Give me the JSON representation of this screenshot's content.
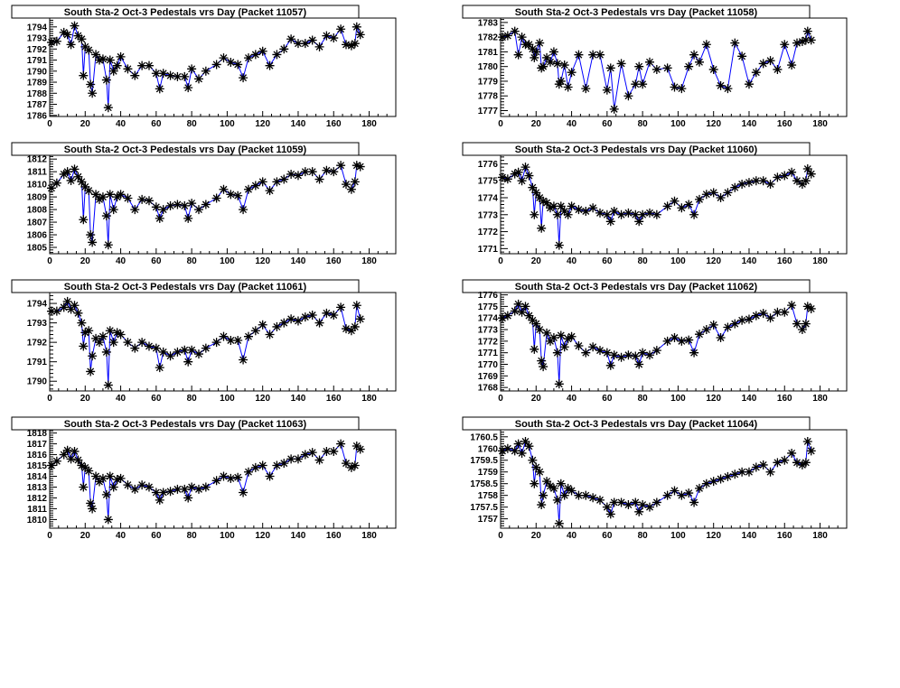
{
  "chart_data": [
    {
      "type": "line",
      "title": "South Sta-2 Oct-3 Pedestals vrs Day (Packet 11057)",
      "xlabel": "",
      "ylabel": "",
      "xlim": [
        0,
        195
      ],
      "ylim": [
        1785.9,
        1794.8
      ],
      "xticks": [
        0,
        20,
        40,
        60,
        80,
        100,
        120,
        140,
        160,
        180
      ],
      "yticks": [
        1786,
        1787,
        1788,
        1789,
        1790,
        1791,
        1792,
        1793,
        1794
      ],
      "x": [
        1,
        4,
        8,
        10,
        12,
        14,
        16,
        18,
        19,
        20,
        22,
        23,
        24,
        26,
        28,
        30,
        32,
        33,
        34,
        36,
        38,
        40,
        44,
        48,
        52,
        56,
        60,
        62,
        64,
        68,
        72,
        76,
        78,
        80,
        84,
        88,
        94,
        98,
        102,
        106,
        109,
        112,
        116,
        120,
        124,
        128,
        132,
        136,
        140,
        144,
        148,
        152,
        156,
        160,
        164,
        167,
        170,
        172,
        173,
        175
      ],
      "y": [
        1792.6,
        1792.7,
        1793.5,
        1793.3,
        1792.4,
        1794.1,
        1793.2,
        1792.9,
        1789.6,
        1792.2,
        1791.9,
        1788.8,
        1788.0,
        1791.5,
        1791.0,
        1791.1,
        1789.2,
        1786.7,
        1791.0,
        1790.0,
        1790.5,
        1791.3,
        1790.2,
        1789.6,
        1790.5,
        1790.5,
        1789.8,
        1788.4,
        1789.8,
        1789.6,
        1789.5,
        1789.5,
        1788.5,
        1790.2,
        1789.3,
        1790.0,
        1790.6,
        1791.2,
        1790.8,
        1790.6,
        1789.4,
        1791.2,
        1791.5,
        1791.8,
        1790.5,
        1791.5,
        1792.0,
        1792.9,
        1792.5,
        1792.5,
        1792.8,
        1792.2,
        1793.2,
        1793.0,
        1793.8,
        1792.4,
        1792.3,
        1792.5,
        1794.0,
        1793.3
      ]
    },
    {
      "type": "line",
      "title": "South Sta-2 Oct-3 Pedestals vrs Day (Packet 11058)",
      "xlabel": "",
      "ylabel": "",
      "xlim": [
        0,
        195
      ],
      "ylim": [
        1776.6,
        1783.3
      ],
      "xticks": [
        0,
        20,
        40,
        60,
        80,
        100,
        120,
        140,
        160,
        180
      ],
      "yticks": [
        1777,
        1778,
        1779,
        1780,
        1781,
        1782,
        1783
      ],
      "x": [
        1,
        4,
        8,
        10,
        12,
        14,
        16,
        18,
        19,
        20,
        22,
        23,
        24,
        26,
        28,
        30,
        32,
        33,
        34,
        36,
        38,
        40,
        44,
        48,
        52,
        56,
        60,
        62,
        64,
        68,
        72,
        76,
        78,
        80,
        84,
        88,
        94,
        98,
        102,
        106,
        109,
        112,
        116,
        120,
        124,
        128,
        132,
        136,
        140,
        144,
        148,
        152,
        156,
        160,
        164,
        167,
        170,
        172,
        173,
        175
      ],
      "y": [
        1782.0,
        1782.1,
        1782.4,
        1780.8,
        1782.0,
        1781.5,
        1781.5,
        1781.2,
        1780.6,
        1781.0,
        1781.6,
        1779.9,
        1780.0,
        1780.6,
        1780.3,
        1781.0,
        1780.2,
        1778.8,
        1779.0,
        1780.1,
        1778.6,
        1779.6,
        1780.8,
        1778.5,
        1780.8,
        1780.8,
        1778.4,
        1779.9,
        1777.1,
        1780.2,
        1778.0,
        1778.8,
        1780.0,
        1778.8,
        1780.3,
        1779.8,
        1779.9,
        1778.6,
        1778.5,
        1780.0,
        1780.8,
        1780.3,
        1781.5,
        1779.8,
        1778.7,
        1778.5,
        1781.6,
        1780.7,
        1778.8,
        1779.6,
        1780.2,
        1780.4,
        1779.8,
        1781.5,
        1780.1,
        1781.6,
        1781.7,
        1781.8,
        1782.4,
        1781.8
      ]
    },
    {
      "type": "line",
      "title": "South Sta-2 Oct-3 Pedestals vrs Day (Packet 11059)",
      "xlabel": "",
      "ylabel": "",
      "xlim": [
        0,
        195
      ],
      "ylim": [
        1804.5,
        1812.3
      ],
      "xticks": [
        0,
        20,
        40,
        60,
        80,
        100,
        120,
        140,
        160,
        180
      ],
      "yticks": [
        1805,
        1806,
        1807,
        1808,
        1809,
        1810,
        1811,
        1812
      ],
      "x": [
        1,
        4,
        8,
        10,
        12,
        14,
        16,
        18,
        19,
        20,
        22,
        23,
        24,
        26,
        28,
        30,
        32,
        33,
        34,
        36,
        38,
        40,
        44,
        48,
        52,
        56,
        60,
        62,
        64,
        68,
        72,
        76,
        78,
        80,
        84,
        88,
        94,
        98,
        102,
        106,
        109,
        112,
        116,
        120,
        124,
        128,
        132,
        136,
        140,
        144,
        148,
        152,
        156,
        160,
        164,
        167,
        170,
        172,
        173,
        175
      ],
      "y": [
        1809.7,
        1810.1,
        1810.8,
        1811.0,
        1810.3,
        1811.2,
        1810.6,
        1810.2,
        1807.2,
        1809.8,
        1809.5,
        1806.0,
        1805.4,
        1809.2,
        1808.8,
        1809.0,
        1807.5,
        1805.2,
        1809.2,
        1808.0,
        1809.0,
        1809.2,
        1808.9,
        1808.0,
        1808.8,
        1808.7,
        1808.2,
        1807.3,
        1808.0,
        1808.3,
        1808.4,
        1808.3,
        1807.3,
        1808.5,
        1808.0,
        1808.4,
        1808.9,
        1809.6,
        1809.2,
        1809.1,
        1808.0,
        1809.6,
        1809.9,
        1810.2,
        1809.5,
        1810.2,
        1810.4,
        1810.8,
        1810.7,
        1811.0,
        1811.0,
        1810.4,
        1811.1,
        1811.0,
        1811.5,
        1810.0,
        1809.6,
        1810.2,
        1811.5,
        1811.4
      ]
    },
    {
      "type": "line",
      "title": "South Sta-2 Oct-3 Pedestals vrs Day (Packet 11060)",
      "xlabel": "",
      "ylabel": "",
      "xlim": [
        0,
        195
      ],
      "ylim": [
        1770.7,
        1776.5
      ],
      "xticks": [
        0,
        20,
        40,
        60,
        80,
        100,
        120,
        140,
        160,
        180
      ],
      "yticks": [
        1771,
        1772,
        1773,
        1774,
        1775,
        1776
      ],
      "x": [
        1,
        4,
        8,
        10,
        12,
        14,
        16,
        18,
        19,
        20,
        22,
        23,
        24,
        26,
        28,
        30,
        32,
        33,
        34,
        36,
        38,
        40,
        44,
        48,
        52,
        56,
        60,
        62,
        64,
        68,
        72,
        76,
        78,
        80,
        84,
        88,
        94,
        98,
        102,
        106,
        109,
        112,
        116,
        120,
        124,
        128,
        132,
        136,
        140,
        144,
        148,
        152,
        156,
        160,
        164,
        167,
        170,
        172,
        173,
        175
      ],
      "y": [
        1775.2,
        1775.1,
        1775.4,
        1775.5,
        1775.0,
        1775.8,
        1775.3,
        1774.6,
        1773.0,
        1774.3,
        1774.0,
        1772.2,
        1773.8,
        1773.7,
        1773.4,
        1773.5,
        1773.0,
        1771.2,
        1773.5,
        1773.2,
        1773.0,
        1773.5,
        1773.3,
        1773.2,
        1773.4,
        1773.1,
        1773.0,
        1772.6,
        1773.2,
        1773.0,
        1773.1,
        1773.0,
        1772.6,
        1773.0,
        1773.1,
        1773.0,
        1773.5,
        1773.8,
        1773.4,
        1773.6,
        1773.0,
        1773.9,
        1774.2,
        1774.3,
        1774.0,
        1774.3,
        1774.6,
        1774.8,
        1774.9,
        1775.0,
        1775.0,
        1774.8,
        1775.2,
        1775.3,
        1775.5,
        1775.0,
        1774.8,
        1775.0,
        1775.7,
        1775.4
      ]
    },
    {
      "type": "line",
      "title": "South Sta-2 Oct-3 Pedestals vrs Day (Packet 11061)",
      "xlabel": "",
      "ylabel": "",
      "xlim": [
        0,
        195
      ],
      "ylim": [
        1789.5,
        1794.56
      ],
      "xticks": [
        0,
        20,
        40,
        60,
        80,
        100,
        120,
        140,
        160,
        180
      ],
      "yticks": [
        1790,
        1791,
        1792,
        1793,
        1794
      ],
      "x": [
        1,
        4,
        8,
        10,
        12,
        14,
        16,
        18,
        19,
        20,
        22,
        23,
        24,
        26,
        28,
        30,
        32,
        33,
        34,
        36,
        38,
        40,
        44,
        48,
        52,
        56,
        60,
        62,
        64,
        68,
        72,
        76,
        78,
        80,
        84,
        88,
        94,
        98,
        102,
        106,
        109,
        112,
        116,
        120,
        124,
        128,
        132,
        136,
        140,
        144,
        148,
        152,
        156,
        160,
        164,
        167,
        170,
        172,
        173,
        175
      ],
      "y": [
        1793.6,
        1793.6,
        1793.8,
        1794.1,
        1793.7,
        1793.9,
        1793.5,
        1793.0,
        1791.8,
        1792.5,
        1792.6,
        1790.5,
        1791.3,
        1792.2,
        1792.0,
        1792.3,
        1791.5,
        1789.8,
        1792.6,
        1792.0,
        1792.5,
        1792.4,
        1792.0,
        1791.7,
        1792.0,
        1791.8,
        1791.7,
        1790.7,
        1791.5,
        1791.3,
        1791.5,
        1791.6,
        1791.0,
        1791.6,
        1791.4,
        1791.7,
        1792.0,
        1792.3,
        1792.1,
        1792.1,
        1791.1,
        1792.3,
        1792.6,
        1792.9,
        1792.4,
        1792.8,
        1793.0,
        1793.2,
        1793.1,
        1793.3,
        1793.4,
        1793.0,
        1793.5,
        1793.4,
        1793.8,
        1792.7,
        1792.6,
        1792.8,
        1793.9,
        1793.2
      ]
    },
    {
      "type": "line",
      "title": "South Sta-2 Oct-3 Pedestals vrs Day (Packet 11062)",
      "xlabel": "",
      "ylabel": "",
      "xlim": [
        0,
        195
      ],
      "ylim": [
        1767.7,
        1776.2
      ],
      "xticks": [
        0,
        20,
        40,
        60,
        80,
        100,
        120,
        140,
        160,
        180
      ],
      "yticks": [
        1768,
        1769,
        1770,
        1771,
        1772,
        1773,
        1774,
        1775,
        1776
      ],
      "x": [
        1,
        4,
        8,
        10,
        12,
        14,
        16,
        18,
        19,
        20,
        22,
        23,
        24,
        26,
        28,
        30,
        32,
        33,
        34,
        36,
        38,
        40,
        44,
        48,
        52,
        56,
        60,
        62,
        64,
        68,
        72,
        76,
        78,
        80,
        84,
        88,
        94,
        98,
        102,
        106,
        109,
        112,
        116,
        120,
        124,
        128,
        132,
        136,
        140,
        144,
        148,
        152,
        156,
        160,
        164,
        167,
        170,
        172,
        173,
        175
      ],
      "y": [
        1774.0,
        1774.2,
        1774.6,
        1775.2,
        1774.5,
        1775.0,
        1774.2,
        1773.8,
        1771.3,
        1773.5,
        1773.0,
        1770.3,
        1769.8,
        1772.7,
        1772.0,
        1772.3,
        1771.0,
        1768.3,
        1772.5,
        1771.5,
        1772.2,
        1772.4,
        1771.6,
        1771.0,
        1771.5,
        1771.2,
        1771.0,
        1769.9,
        1770.8,
        1770.6,
        1770.8,
        1770.7,
        1770.0,
        1771.0,
        1770.8,
        1771.2,
        1772.0,
        1772.3,
        1772.0,
        1772.1,
        1771.0,
        1772.6,
        1773.0,
        1773.4,
        1772.3,
        1773.2,
        1773.5,
        1773.8,
        1773.9,
        1774.2,
        1774.4,
        1774.0,
        1774.5,
        1774.5,
        1775.1,
        1773.5,
        1773.0,
        1773.5,
        1775.0,
        1774.8
      ]
    },
    {
      "type": "line",
      "title": "South Sta-2 Oct-3 Pedestals vrs Day (Packet 11063)",
      "xlabel": "",
      "ylabel": "",
      "xlim": [
        0,
        195
      ],
      "ylim": [
        1809.2,
        1818.3
      ],
      "xticks": [
        0,
        20,
        40,
        60,
        80,
        100,
        120,
        140,
        160,
        180
      ],
      "yticks": [
        1810,
        1811,
        1812,
        1813,
        1814,
        1815,
        1816,
        1817,
        1818
      ],
      "x": [
        1,
        4,
        8,
        10,
        12,
        14,
        16,
        18,
        19,
        20,
        22,
        23,
        24,
        26,
        28,
        30,
        32,
        33,
        34,
        36,
        38,
        40,
        44,
        48,
        52,
        56,
        60,
        62,
        64,
        68,
        72,
        76,
        78,
        80,
        84,
        88,
        94,
        98,
        102,
        106,
        109,
        112,
        116,
        120,
        124,
        128,
        132,
        136,
        140,
        144,
        148,
        152,
        156,
        160,
        164,
        167,
        170,
        172,
        173,
        175
      ],
      "y": [
        1815.0,
        1815.4,
        1816.0,
        1816.4,
        1815.6,
        1816.3,
        1815.5,
        1815.0,
        1813.0,
        1814.8,
        1814.5,
        1811.5,
        1811.0,
        1814.0,
        1813.5,
        1813.8,
        1812.3,
        1810.0,
        1814.0,
        1813.0,
        1813.7,
        1813.8,
        1813.2,
        1812.8,
        1813.2,
        1813.0,
        1812.5,
        1811.8,
        1812.5,
        1812.6,
        1812.8,
        1812.8,
        1812.0,
        1813.0,
        1812.8,
        1813.0,
        1813.6,
        1814.0,
        1813.8,
        1813.9,
        1812.5,
        1814.4,
        1814.8,
        1815.0,
        1814.0,
        1815.0,
        1815.2,
        1815.6,
        1815.6,
        1816.0,
        1816.2,
        1815.5,
        1816.3,
        1816.3,
        1817.0,
        1815.2,
        1814.8,
        1815.0,
        1816.8,
        1816.5
      ]
    },
    {
      "type": "line",
      "title": "South Sta-2 Oct-3 Pedestals vrs Day (Packet 11064)",
      "xlabel": "",
      "ylabel": "",
      "xlim": [
        0,
        195
      ],
      "ylim": [
        1756.6,
        1760.8
      ],
      "xticks": [
        0,
        20,
        40,
        60,
        80,
        100,
        120,
        140,
        160,
        180
      ],
      "yticks": [
        1757,
        1757.5,
        1758,
        1758.5,
        1759,
        1759.5,
        1760,
        1760.5
      ],
      "x": [
        1,
        4,
        8,
        10,
        12,
        14,
        16,
        18,
        19,
        20,
        22,
        23,
        24,
        26,
        28,
        30,
        32,
        33,
        34,
        36,
        38,
        40,
        44,
        48,
        52,
        56,
        60,
        62,
        64,
        68,
        72,
        76,
        78,
        80,
        84,
        88,
        94,
        98,
        102,
        106,
        109,
        112,
        116,
        120,
        124,
        128,
        132,
        136,
        140,
        144,
        148,
        152,
        156,
        160,
        164,
        167,
        170,
        172,
        173,
        175
      ],
      "y": [
        1759.9,
        1760.0,
        1759.9,
        1760.2,
        1759.8,
        1760.3,
        1760.1,
        1759.5,
        1758.5,
        1759.2,
        1759.0,
        1757.6,
        1758.0,
        1758.6,
        1758.4,
        1758.3,
        1757.8,
        1756.8,
        1758.5,
        1758.0,
        1758.3,
        1758.2,
        1758.0,
        1758.0,
        1757.9,
        1757.8,
        1757.5,
        1757.2,
        1757.7,
        1757.7,
        1757.6,
        1757.7,
        1757.3,
        1757.6,
        1757.5,
        1757.7,
        1758.0,
        1758.2,
        1758.0,
        1758.1,
        1757.7,
        1758.3,
        1758.5,
        1758.6,
        1758.7,
        1758.8,
        1758.9,
        1759.0,
        1759.0,
        1759.2,
        1759.3,
        1759.0,
        1759.4,
        1759.5,
        1759.8,
        1759.4,
        1759.3,
        1759.4,
        1760.3,
        1759.9
      ]
    }
  ],
  "colors": {
    "line": "#0000ff",
    "marker": "#000000",
    "frame": "#000000",
    "background": "#ffffff"
  }
}
